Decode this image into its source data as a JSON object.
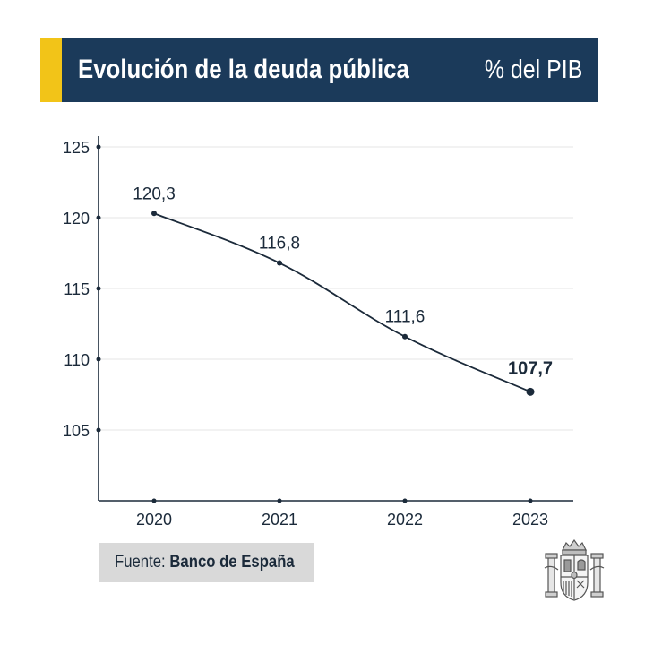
{
  "header": {
    "title": "Evolución de la deuda pública",
    "unit": "% del PIB",
    "accent_color": "#f2c418",
    "background_color": "#1b3a5a"
  },
  "chart_data": {
    "type": "line",
    "title": "Evolución de la deuda pública",
    "ylabel": "% del PIB",
    "x": [
      "2020",
      "2021",
      "2022",
      "2023"
    ],
    "series": [
      {
        "values": [
          120.3,
          116.8,
          111.6,
          107.7
        ]
      }
    ],
    "value_labels": [
      "120,3",
      "116,8",
      "111,6",
      "107,7"
    ],
    "highlighted_point": "2023",
    "yticks": [
      105,
      110,
      115,
      120,
      125
    ],
    "ylim": [
      100,
      125
    ],
    "grid": true,
    "line_color": "#1b2a3a"
  },
  "source": {
    "label": "Fuente:",
    "name": "Banco de España"
  },
  "logo": {
    "icon": "coat-of-arms-of-spain-icon"
  }
}
